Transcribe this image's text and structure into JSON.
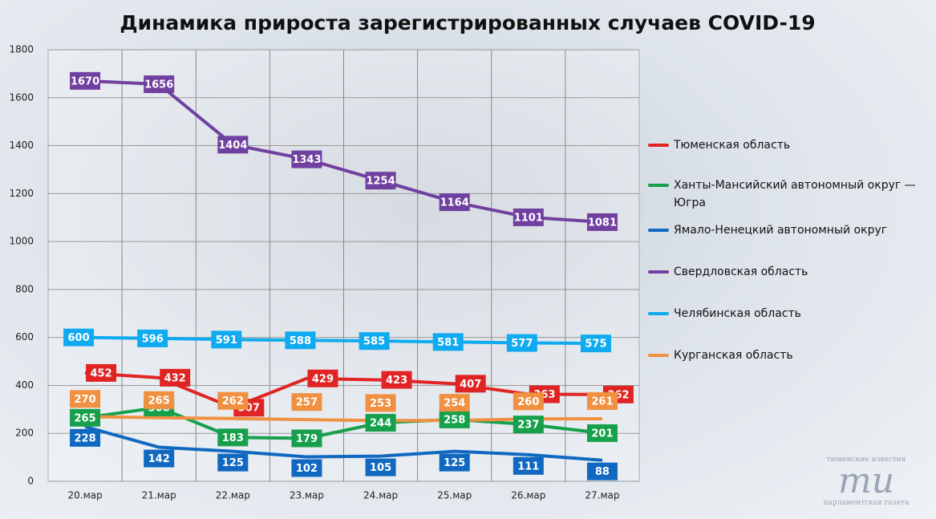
{
  "chart_data": {
    "type": "line",
    "title": "Динамика прироста зарегистрированных случаев COVID-19",
    "categories": [
      "20.мар",
      "21.мар",
      "22.мар",
      "23.мар",
      "24.мар",
      "25.мар",
      "26.мар",
      "27.мар"
    ],
    "series": [
      {
        "name": "Тюменская область",
        "color": "#e02424",
        "values": [
          452,
          432,
          307,
          429,
          423,
          407,
          363,
          362
        ]
      },
      {
        "name": "Ханты-Мансийский автономный округ — Югра",
        "color": "#16a04c",
        "values": [
          265,
          308,
          183,
          179,
          244,
          258,
          237,
          201
        ]
      },
      {
        "name": "Ямало-Ненецкий автономный округ",
        "color": "#1068c0",
        "values": [
          228,
          142,
          125,
          102,
          105,
          125,
          111,
          88
        ]
      },
      {
        "name": "Свердловская область",
        "color": "#7040a0",
        "values": [
          1670,
          1656,
          1404,
          1343,
          1254,
          1164,
          1101,
          1081
        ]
      },
      {
        "name": "Челябинская область",
        "color": "#10aaf0",
        "values": [
          600,
          596,
          591,
          588,
          585,
          581,
          577,
          575
        ]
      },
      {
        "name": "Курганская область",
        "color": "#f09040",
        "values": [
          270,
          265,
          262,
          257,
          253,
          254,
          260,
          261
        ]
      }
    ],
    "ylim": [
      0,
      1800
    ],
    "yticks": [
      0,
      200,
      400,
      600,
      800,
      1000,
      1200,
      1400,
      1600,
      1800
    ],
    "grid": true,
    "watermark": [
      "тюменские известия",
      "ти",
      "парламентская газета"
    ]
  }
}
